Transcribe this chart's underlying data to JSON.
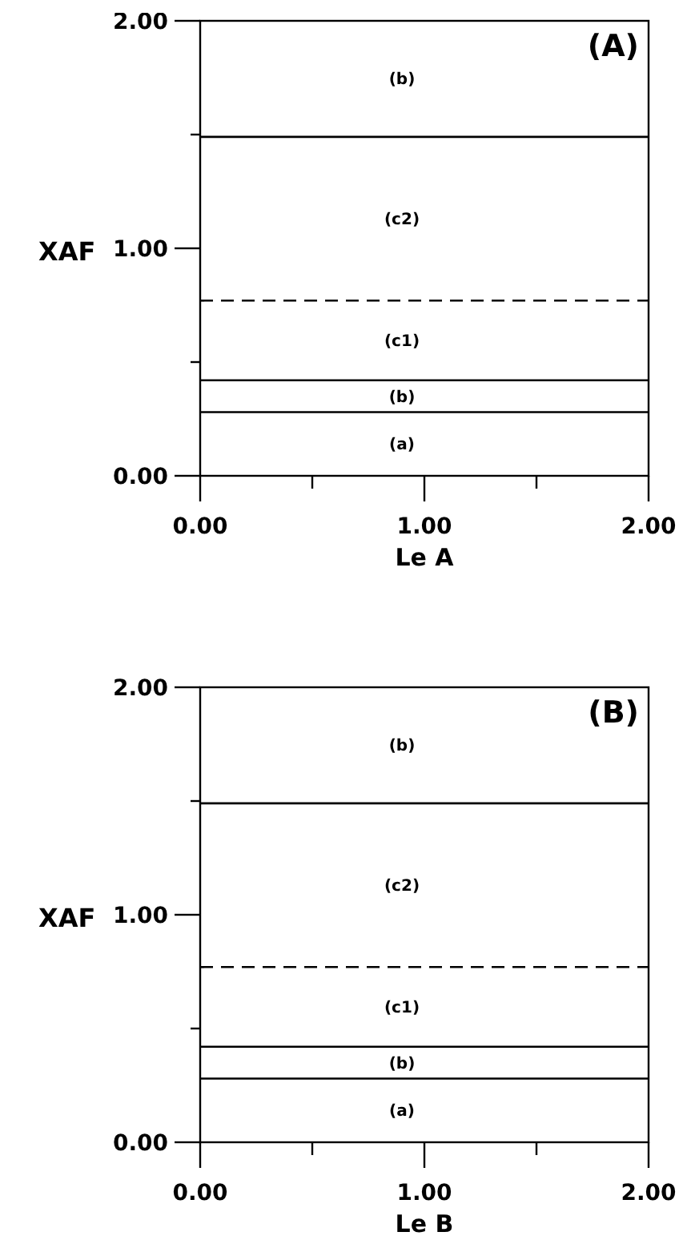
{
  "chart_data": [
    {
      "type": "line",
      "title": "(A)",
      "xlabel": "Le A",
      "ylabel": "XAF",
      "xlim": [
        0,
        2
      ],
      "ylim": [
        0,
        2
      ],
      "xticks": [
        {
          "value": 0,
          "label": "0.00"
        },
        {
          "value": 0.5,
          "label": null
        },
        {
          "value": 1,
          "label": "1.00"
        },
        {
          "value": 1.5,
          "label": null
        },
        {
          "value": 2,
          "label": "2.00"
        }
      ],
      "yticks": [
        {
          "value": 0,
          "label": "0.00"
        },
        {
          "value": 0.5,
          "label": null
        },
        {
          "value": 1,
          "label": "1.00"
        },
        {
          "value": 1.5,
          "label": null
        },
        {
          "value": 2,
          "label": "2.00"
        }
      ],
      "ref_lines": [
        {
          "axis": "y",
          "value": 1.49,
          "color": "#000000",
          "line_style": "solid"
        },
        {
          "axis": "y",
          "value": 0.77,
          "color": "#000000",
          "line_style": "dashed"
        },
        {
          "axis": "y",
          "value": 0.42,
          "color": "#000000",
          "line_style": "solid"
        },
        {
          "axis": "y",
          "value": 0.28,
          "color": "#000000",
          "line_style": "solid"
        }
      ],
      "annotations": [
        "(b)",
        "(c2)",
        "(c1)",
        "(b)",
        "(a)"
      ]
    },
    {
      "type": "line",
      "title": "(B)",
      "xlabel": "Le B",
      "ylabel": "XAF",
      "xlim": [
        0,
        2
      ],
      "ylim": [
        0,
        2
      ],
      "xticks": [
        {
          "value": 0,
          "label": "0.00"
        },
        {
          "value": 0.5,
          "label": null
        },
        {
          "value": 1,
          "label": "1.00"
        },
        {
          "value": 1.5,
          "label": null
        },
        {
          "value": 2,
          "label": "2.00"
        }
      ],
      "yticks": [
        {
          "value": 0,
          "label": "0.00"
        },
        {
          "value": 0.5,
          "label": null
        },
        {
          "value": 1,
          "label": "1.00"
        },
        {
          "value": 1.5,
          "label": null
        },
        {
          "value": 2,
          "label": "2.00"
        }
      ],
      "ref_lines": [
        {
          "axis": "y",
          "value": 1.49,
          "color": "#000000",
          "line_style": "solid"
        },
        {
          "axis": "y",
          "value": 0.77,
          "color": "#000000",
          "line_style": "dashed"
        },
        {
          "axis": "y",
          "value": 0.42,
          "color": "#000000",
          "line_style": "solid"
        },
        {
          "axis": "y",
          "value": 0.28,
          "color": "#000000",
          "line_style": "solid"
        }
      ],
      "annotations": [
        "(b)",
        "(c2)",
        "(c1)",
        "(b)",
        "(a)"
      ]
    }
  ]
}
